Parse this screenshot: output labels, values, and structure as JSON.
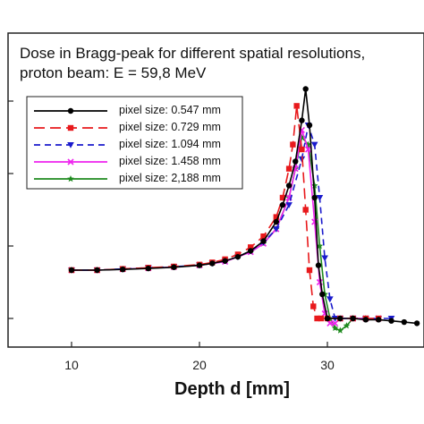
{
  "chart_data": {
    "type": "line",
    "title": "Dose in Bragg-peak for different  spatial resolutions,",
    "subtitle": "proton beam: E = 59,8 MeV",
    "xlabel": "Depth d [mm]",
    "ylabel": "",
    "xlim": [
      5,
      38
    ],
    "ylim": [
      0,
      1.0
    ],
    "x_ticks": [
      "10",
      "20",
      "30"
    ],
    "legend_position": "upper-left",
    "grid": false,
    "series": [
      {
        "name": "pixel size: 0.547 mm",
        "color": "#000000",
        "dash": "solid",
        "marker": "circle",
        "x": [
          10,
          12,
          14,
          16,
          18,
          20,
          21,
          22,
          23,
          24,
          25,
          26,
          26.5,
          27,
          27.5,
          28,
          28.3,
          28.6,
          29,
          29.3,
          29.6,
          30,
          31,
          32,
          33,
          34,
          35,
          36,
          37
        ],
        "y": [
          0.2,
          0.2,
          0.203,
          0.207,
          0.212,
          0.22,
          0.228,
          0.238,
          0.255,
          0.28,
          0.32,
          0.4,
          0.47,
          0.55,
          0.65,
          0.82,
          0.95,
          0.8,
          0.5,
          0.22,
          0.1,
          0.0,
          0.0,
          0.0,
          -0.005,
          -0.005,
          -0.01,
          -0.015,
          -0.02
        ]
      },
      {
        "name": "pixel size: 0.729 mm",
        "color": "#e8191c",
        "dash": "long-dash",
        "marker": "square",
        "x": [
          10,
          12,
          14,
          16,
          18,
          20,
          21,
          22,
          23,
          24,
          25,
          26,
          26.5,
          27,
          27.3,
          27.6,
          28,
          28.3,
          28.6,
          28.9,
          29.2,
          29.5,
          30,
          31,
          32,
          33,
          34
        ],
        "y": [
          0.2,
          0.2,
          0.205,
          0.21,
          0.215,
          0.223,
          0.232,
          0.245,
          0.265,
          0.295,
          0.34,
          0.42,
          0.5,
          0.62,
          0.72,
          0.88,
          0.7,
          0.45,
          0.2,
          0.05,
          0.0,
          0.0,
          0.0,
          0.0,
          0.0,
          0.0,
          0.0
        ]
      },
      {
        "name": "pixel size: 1.094 mm",
        "color": "#1a1acc",
        "dash": "dash",
        "marker": "triangle-down",
        "x": [
          10,
          12,
          14,
          16,
          18,
          20,
          21,
          22,
          23,
          24,
          25,
          26,
          27,
          28,
          28.5,
          29,
          29.4,
          29.8,
          30.2,
          30.6,
          31,
          32,
          33,
          34,
          35
        ],
        "y": [
          0.2,
          0.2,
          0.205,
          0.21,
          0.214,
          0.221,
          0.228,
          0.238,
          0.255,
          0.28,
          0.315,
          0.37,
          0.47,
          0.66,
          0.8,
          0.72,
          0.5,
          0.25,
          0.08,
          0.0,
          0.0,
          0.0,
          0.0,
          0.0,
          0.0
        ]
      },
      {
        "name": "pixel size: 1.458 mm",
        "color": "#ee22ee",
        "dash": "solid",
        "marker": "x",
        "x": [
          10,
          12,
          14,
          16,
          18,
          20,
          22,
          24,
          25,
          26,
          27,
          27.5,
          28,
          28.5,
          29,
          29.4,
          29.8,
          30.2,
          30.6,
          31,
          32,
          33,
          34
        ],
        "y": [
          0.2,
          0.2,
          0.204,
          0.208,
          0.213,
          0.22,
          0.235,
          0.275,
          0.31,
          0.37,
          0.5,
          0.62,
          0.78,
          0.7,
          0.4,
          0.15,
          0.02,
          -0.02,
          -0.02,
          0.0,
          0.0,
          0.0,
          0.0
        ]
      },
      {
        "name": "pixel size: 2,188 mm",
        "color": "#1e8a1e",
        "dash": "solid",
        "marker": "star",
        "x": [
          10,
          12,
          14,
          16,
          18,
          20,
          22,
          24,
          25,
          26,
          27,
          27.5,
          28,
          28.5,
          29,
          29.4,
          29.8,
          30.2,
          30.6,
          31,
          31.5,
          32,
          33
        ],
        "y": [
          0.2,
          0.2,
          0.204,
          0.208,
          0.213,
          0.22,
          0.236,
          0.275,
          0.31,
          0.37,
          0.5,
          0.62,
          0.75,
          0.72,
          0.55,
          0.3,
          0.1,
          0.0,
          -0.04,
          -0.05,
          -0.03,
          0.0,
          0.0
        ]
      }
    ]
  }
}
